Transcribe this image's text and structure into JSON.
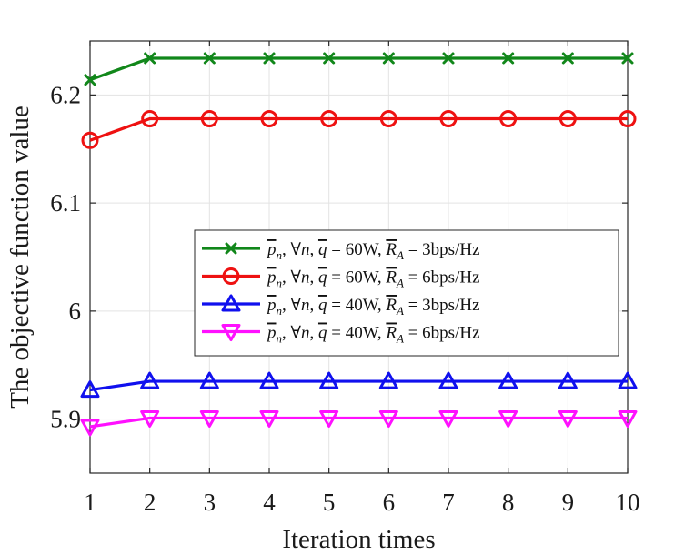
{
  "chart_data": {
    "type": "line",
    "xlabel": "Iteration times",
    "ylabel": "The objective function value",
    "xlim": [
      1,
      10
    ],
    "ylim": [
      5.85,
      6.25
    ],
    "xticks": [
      1,
      2,
      3,
      4,
      5,
      6,
      7,
      8,
      9,
      10
    ],
    "xtick_labels": [
      "1",
      "2",
      "3",
      "4",
      "5",
      "6",
      "7",
      "8",
      "9",
      "10"
    ],
    "yticks": [
      5.9,
      6.0,
      6.1,
      6.2
    ],
    "ytick_labels": [
      "5.9",
      "6",
      "6.1",
      "6.2"
    ],
    "grid": true,
    "legend_position": "center-right",
    "x": [
      1,
      2,
      3,
      4,
      5,
      6,
      7,
      8,
      9,
      10
    ],
    "series": [
      {
        "name": "p̄n, ∀n, q̄ = 60W, R̄A = 3bps/Hz",
        "legend": {
          "pn": "p",
          "n_sub": "n",
          "forall": ", ∀",
          "n_var": "n",
          "sep1": ", ",
          "q": "q",
          "eq": " = ",
          "qval": "60W",
          "sep2": ", ",
          "R": "R",
          "A_sub": "A",
          "rval": "3bps/Hz"
        },
        "color": "#11871a",
        "marker": "x",
        "values": [
          6.214,
          6.234,
          6.234,
          6.234,
          6.234,
          6.234,
          6.234,
          6.234,
          6.234,
          6.234
        ]
      },
      {
        "name": "p̄n, ∀n, q̄ = 60W, R̄A = 6bps/Hz",
        "legend": {
          "pn": "p",
          "n_sub": "n",
          "forall": ", ∀",
          "n_var": "n",
          "sep1": ", ",
          "q": "q",
          "eq": " = ",
          "qval": "60W",
          "sep2": ", ",
          "R": "R",
          "A_sub": "A",
          "rval": "6bps/Hz"
        },
        "color": "#ee1111",
        "marker": "circle",
        "values": [
          6.158,
          6.178,
          6.178,
          6.178,
          6.178,
          6.178,
          6.178,
          6.178,
          6.178,
          6.178
        ]
      },
      {
        "name": "p̄n, ∀n, q̄ = 40W, R̄A = 3bps/Hz",
        "legend": {
          "pn": "p",
          "n_sub": "n",
          "forall": ", ∀",
          "n_var": "n",
          "sep1": ", ",
          "q": "q",
          "eq": " = ",
          "qval": "40W",
          "sep2": ", ",
          "R": "R",
          "A_sub": "A",
          "rval": "3bps/Hz"
        },
        "color": "#1010ee",
        "marker": "triangle-up",
        "values": [
          5.927,
          5.935,
          5.935,
          5.935,
          5.935,
          5.935,
          5.935,
          5.935,
          5.935,
          5.935
        ]
      },
      {
        "name": "p̄n, ∀n, q̄ = 40W, R̄A = 6bps/Hz",
        "legend": {
          "pn": "p",
          "n_sub": "n",
          "forall": ", ∀",
          "n_var": "n",
          "sep1": ", ",
          "q": "q",
          "eq": " = ",
          "qval": "40W",
          "sep2": ", ",
          "R": "R",
          "A_sub": "A",
          "rval": "6bps/Hz"
        },
        "color": "#ff10ff",
        "marker": "triangle-down",
        "values": [
          5.893,
          5.901,
          5.901,
          5.901,
          5.901,
          5.901,
          5.901,
          5.901,
          5.901,
          5.901
        ]
      }
    ]
  }
}
